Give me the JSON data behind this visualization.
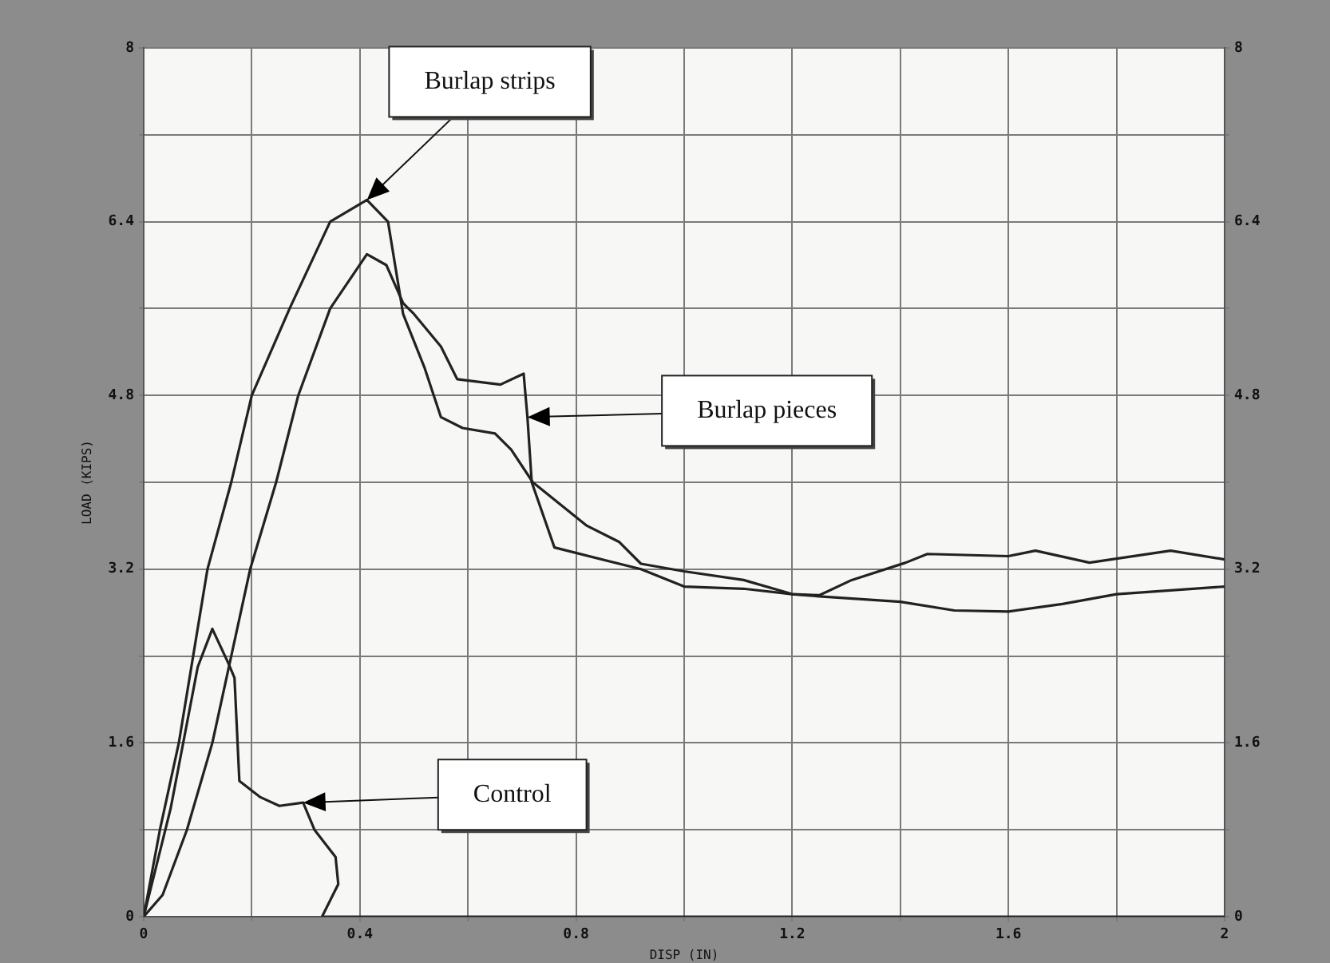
{
  "chart_data": {
    "type": "line",
    "xlabel": "DISP (IN)",
    "ylabel": "LOAD (KIPS)",
    "xlim": [
      0,
      2
    ],
    "xticks": [
      0,
      {
        "value": 0.2,
        "label": null
      },
      0.4,
      {
        "value": 0.6,
        "label": null
      },
      0.8,
      {
        "value": 1.0,
        "label": null
      },
      1.2,
      {
        "value": 1.4,
        "label": null
      },
      1.6,
      {
        "value": 1.8,
        "label": null
      },
      2
    ],
    "ylim": [
      0,
      8
    ],
    "yticks": [
      0,
      {
        "value": 0.8,
        "label": null
      },
      1.6,
      {
        "value": 2.4,
        "label": null
      },
      3.2,
      {
        "value": 4.0,
        "label": null
      },
      4.8,
      {
        "value": 5.6,
        "label": null
      },
      6.4,
      {
        "value": 7.2,
        "label": null
      },
      8
    ],
    "y2lim": [
      0,
      8
    ],
    "y2ticks": [
      0,
      {
        "value": 0.8,
        "label": null
      },
      1.6,
      {
        "value": 2.4,
        "label": null
      },
      3.2,
      {
        "value": 4.0,
        "label": null
      },
      4.8,
      {
        "value": 5.6,
        "label": null
      },
      6.4,
      {
        "value": 7.2,
        "label": null
      },
      8
    ],
    "grid": true,
    "legend": false,
    "marker": "none",
    "line_style": "solid",
    "series": [
      {
        "color": "#222222",
        "x": [
          0,
          0.03,
          0.065,
          0.118,
          0.162,
          0.2,
          0.27,
          0.345,
          0.413,
          0.452,
          0.48,
          0.52,
          0.55,
          0.59,
          0.65,
          0.68,
          0.72,
          0.82,
          0.88,
          0.92,
          1.0,
          1.11,
          1.2,
          1.25,
          1.31,
          1.41,
          1.45,
          1.6,
          1.65,
          1.75,
          1.9,
          2.0
        ],
        "values": [
          0,
          0.8,
          1.6,
          3.2,
          4.0,
          4.8,
          5.6,
          6.4,
          6.6,
          6.4,
          5.55,
          5.05,
          4.6,
          4.5,
          4.45,
          4.3,
          4.0,
          3.6,
          3.45,
          3.25,
          3.18,
          3.1,
          2.97,
          2.96,
          3.1,
          3.26,
          3.34,
          3.32,
          3.37,
          3.26,
          3.37,
          3.29
        ]
      },
      {
        "color": "#222222",
        "x": [
          0,
          0.035,
          0.08,
          0.127,
          0.197,
          0.245,
          0.286,
          0.345,
          0.413,
          0.449,
          0.48,
          0.5,
          0.55,
          0.58,
          0.66,
          0.703,
          0.71,
          0.718,
          0.76,
          0.92,
          1.0,
          1.11,
          1.2,
          1.25,
          1.4,
          1.5,
          1.6,
          1.7,
          1.8,
          2.0
        ],
        "values": [
          0,
          0.2,
          0.8,
          1.6,
          3.2,
          4.0,
          4.8,
          5.6,
          6.1,
          6.0,
          5.65,
          5.55,
          5.25,
          4.95,
          4.9,
          5.0,
          4.6,
          4.0,
          3.4,
          3.2,
          3.04,
          3.02,
          2.97,
          2.95,
          2.9,
          2.82,
          2.81,
          2.88,
          2.97,
          3.04
        ]
      },
      {
        "color": "#222222",
        "x": [
          0,
          0.05,
          0.1,
          0.127,
          0.157,
          0.168,
          0.177,
          0.216,
          0.251,
          0.295,
          0.316,
          0.355,
          0.36,
          0.33,
          1.0,
          2.0
        ],
        "values": [
          0,
          1.0,
          2.3,
          2.65,
          2.33,
          2.2,
          1.25,
          1.1,
          1.02,
          1.05,
          0.8,
          0.55,
          0.3,
          0,
          0,
          0
        ]
      }
    ],
    "annotations": [
      "Burlap strips",
      "Burlap pieces",
      "Control"
    ]
  }
}
